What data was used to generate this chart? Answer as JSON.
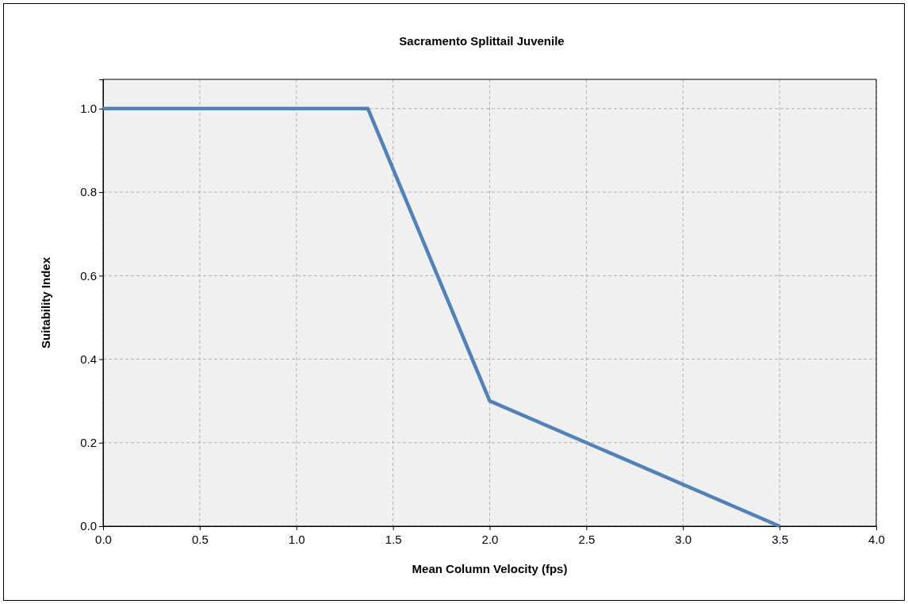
{
  "chart_data": {
    "type": "line",
    "title": "Sacramento Splittail Juvenile",
    "xlabel": "Mean Column Velocity (fps)",
    "ylabel": "Suitability Index",
    "x": [
      0,
      1.37,
      2.0,
      3.5
    ],
    "series": [
      {
        "color": "#4f81bd",
        "values": [
          1.0,
          1.0,
          0.3,
          0.0
        ]
      }
    ],
    "xlim": [
      0,
      4
    ],
    "xticks": [
      {
        "value": 0,
        "label": "0.0"
      },
      {
        "value": 0.5,
        "label": "0.5"
      },
      {
        "value": 1,
        "label": "1.0"
      },
      {
        "value": 1.5,
        "label": "1.5"
      },
      {
        "value": 2,
        "label": "2.0"
      },
      {
        "value": 2.5,
        "label": "2.5"
      },
      {
        "value": 3,
        "label": "3.0"
      },
      {
        "value": 3.5,
        "label": "3.5"
      },
      {
        "value": 4,
        "label": "4.0"
      }
    ],
    "ylim": [
      0,
      1.07
    ],
    "yticks": [
      {
        "value": 0,
        "label": "0.0"
      },
      {
        "value": 0.2,
        "label": "0.2"
      },
      {
        "value": 0.4,
        "label": "0.4"
      },
      {
        "value": 0.6,
        "label": "0.6"
      },
      {
        "value": 0.8,
        "label": "0.8"
      },
      {
        "value": 1,
        "label": "1.0"
      }
    ],
    "grid": true,
    "marker": "none",
    "line_style": "solid"
  }
}
